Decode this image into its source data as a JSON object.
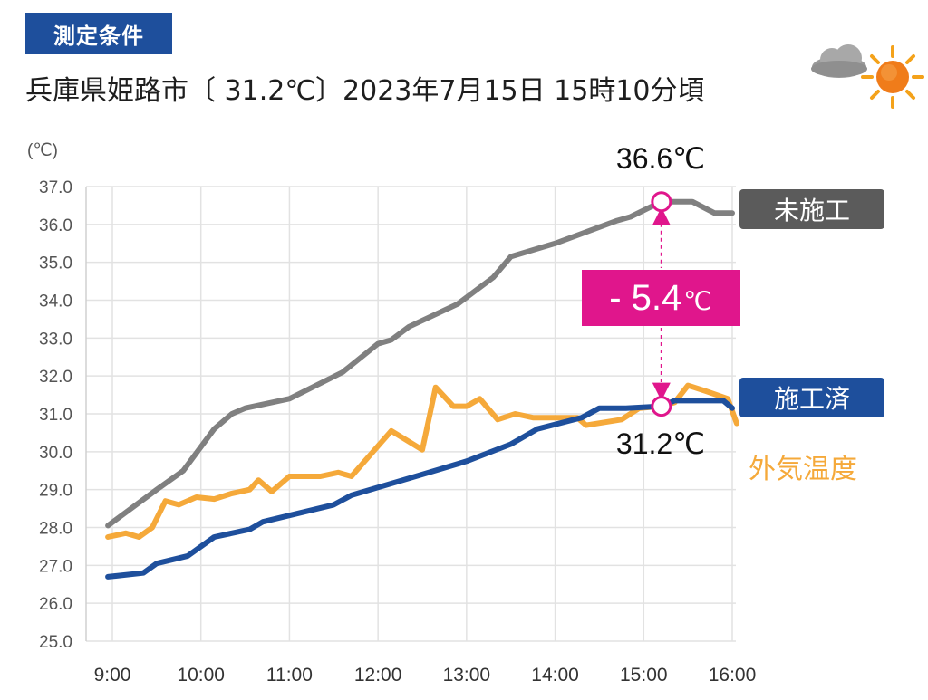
{
  "badge": "測定条件",
  "headline": "兵庫県姫路市〔 31.2℃〕2023年7月15日  15時10分頃",
  "weather_icon": "cloud-sun-icon",
  "colors": {
    "untreated": "#808080",
    "treated": "#1e4f9c",
    "outdoor": "#f5a93a",
    "diff": "#e0168c",
    "untreated_label_bg": "#5b5b5b",
    "badge": "#1e4f9c"
  },
  "chart_data": {
    "type": "line",
    "ylabel": "(℃)",
    "ylim": [
      25.0,
      37.0
    ],
    "y_ticks": [
      "25.0",
      "26.0",
      "27.0",
      "28.0",
      "29.0",
      "30.0",
      "31.0",
      "32.0",
      "33.0",
      "34.0",
      "35.0",
      "36.0",
      "37.0"
    ],
    "x_ticks": [
      "9:00",
      "10:00",
      "11:00",
      "12:00",
      "13:00",
      "14:00",
      "15:00",
      "16:00"
    ],
    "xlim_hours": [
      8.95,
      16.0
    ],
    "grid": true,
    "series": [
      {
        "name": "未施工",
        "color": "#808080",
        "points": [
          [
            8.95,
            28.05
          ],
          [
            9.5,
            29.0
          ],
          [
            9.8,
            29.5
          ],
          [
            10.15,
            30.6
          ],
          [
            10.35,
            31.0
          ],
          [
            10.5,
            31.15
          ],
          [
            11.0,
            31.4
          ],
          [
            11.6,
            32.1
          ],
          [
            12.0,
            32.85
          ],
          [
            12.15,
            32.95
          ],
          [
            12.35,
            33.3
          ],
          [
            12.9,
            33.9
          ],
          [
            13.3,
            34.6
          ],
          [
            13.5,
            35.15
          ],
          [
            14.0,
            35.5
          ],
          [
            14.7,
            36.1
          ],
          [
            14.85,
            36.2
          ],
          [
            15.2,
            36.6
          ],
          [
            15.55,
            36.6
          ],
          [
            15.8,
            36.3
          ],
          [
            16.0,
            36.3
          ]
        ]
      },
      {
        "name": "施工済",
        "color": "#1e4f9c",
        "points": [
          [
            8.95,
            26.7
          ],
          [
            9.35,
            26.8
          ],
          [
            9.5,
            27.05
          ],
          [
            9.85,
            27.25
          ],
          [
            10.15,
            27.75
          ],
          [
            10.55,
            27.95
          ],
          [
            10.7,
            28.15
          ],
          [
            11.5,
            28.6
          ],
          [
            11.7,
            28.85
          ],
          [
            12.5,
            29.4
          ],
          [
            13.0,
            29.75
          ],
          [
            13.5,
            30.2
          ],
          [
            13.8,
            30.6
          ],
          [
            14.3,
            30.9
          ],
          [
            14.5,
            31.15
          ],
          [
            14.8,
            31.15
          ],
          [
            15.2,
            31.2
          ],
          [
            15.35,
            31.35
          ],
          [
            15.9,
            31.35
          ],
          [
            16.0,
            31.15
          ]
        ]
      },
      {
        "name": "外気温度",
        "color": "#f5a93a",
        "points": [
          [
            8.95,
            27.75
          ],
          [
            9.15,
            27.85
          ],
          [
            9.3,
            27.75
          ],
          [
            9.45,
            28.0
          ],
          [
            9.6,
            28.7
          ],
          [
            9.75,
            28.6
          ],
          [
            9.95,
            28.8
          ],
          [
            10.15,
            28.75
          ],
          [
            10.35,
            28.9
          ],
          [
            10.55,
            29.0
          ],
          [
            10.65,
            29.25
          ],
          [
            10.8,
            28.95
          ],
          [
            11.0,
            29.35
          ],
          [
            11.35,
            29.35
          ],
          [
            11.55,
            29.45
          ],
          [
            11.7,
            29.35
          ],
          [
            12.15,
            30.55
          ],
          [
            12.5,
            30.05
          ],
          [
            12.65,
            31.7
          ],
          [
            12.85,
            31.2
          ],
          [
            13.0,
            31.2
          ],
          [
            13.15,
            31.4
          ],
          [
            13.35,
            30.85
          ],
          [
            13.55,
            31.0
          ],
          [
            13.75,
            30.9
          ],
          [
            14.25,
            30.9
          ],
          [
            14.35,
            30.7
          ],
          [
            14.75,
            30.85
          ],
          [
            14.95,
            31.15
          ],
          [
            15.2,
            31.2
          ],
          [
            15.35,
            31.3
          ],
          [
            15.5,
            31.75
          ],
          [
            15.7,
            31.6
          ],
          [
            15.95,
            31.4
          ],
          [
            16.05,
            30.75
          ]
        ]
      }
    ],
    "annotations": {
      "max_label": "36.6℃",
      "max_point": [
        15.2,
        36.6
      ],
      "min_label": "31.2℃",
      "min_point": [
        15.2,
        31.2
      ],
      "diff_label": "- 5.4",
      "diff_unit": "℃"
    },
    "legend_labels": {
      "untreated": "未施工",
      "treated": "施工済",
      "outdoor": "外気温度"
    }
  }
}
